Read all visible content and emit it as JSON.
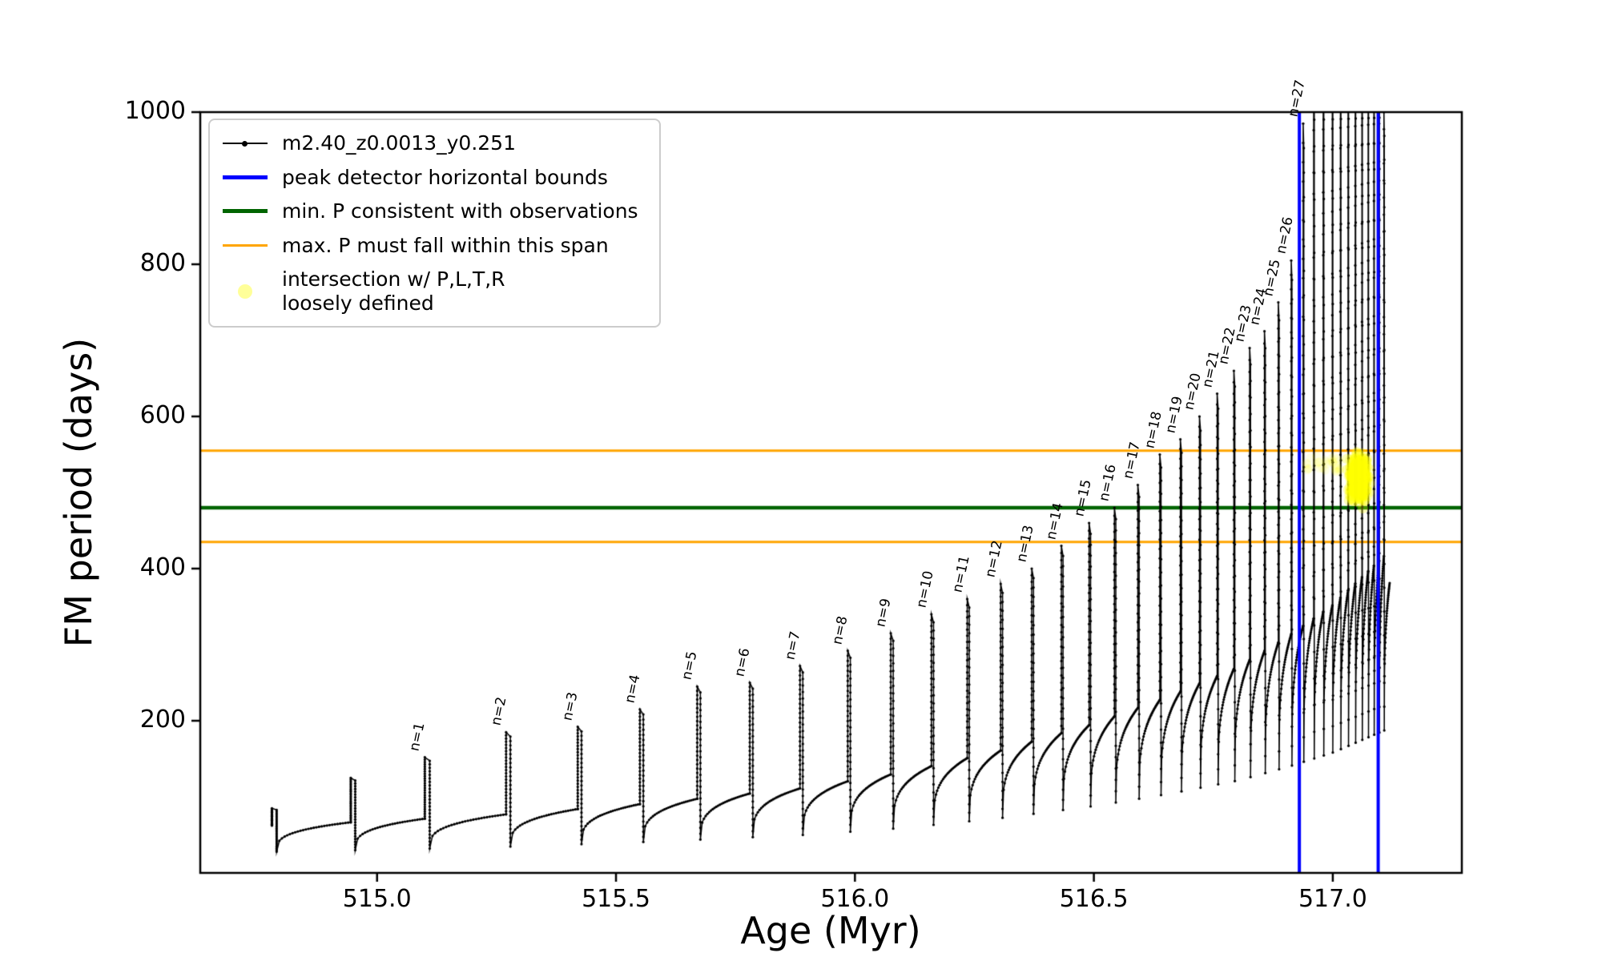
{
  "figure": {
    "background": "#ffffff"
  },
  "chart_data": {
    "type": "line",
    "title": "",
    "xlabel": "Age (Myr)",
    "ylabel": "FM period (days)",
    "xlim": [
      514.63,
      517.27
    ],
    "ylim": [
      0,
      1000
    ],
    "xticks": [
      515.0,
      515.5,
      516.0,
      516.5,
      517.0
    ],
    "xtick_labels": [
      "515.0",
      "515.5",
      "516.0",
      "516.5",
      "517.0"
    ],
    "yticks": [
      200,
      400,
      600,
      800,
      1000
    ],
    "grid": false,
    "series_name": "m2.40_z0.0013_y0.251",
    "series_color": "#000000",
    "dip_ratio": 0.45,
    "baseline_anchors": [
      [
        514.7,
        60
      ],
      [
        515.0,
        68
      ],
      [
        515.3,
        78
      ],
      [
        515.6,
        93
      ],
      [
        515.9,
        112
      ],
      [
        516.1,
        132
      ],
      [
        516.3,
        160
      ],
      [
        516.5,
        196
      ],
      [
        516.65,
        230
      ],
      [
        516.8,
        270
      ],
      [
        516.9,
        308
      ],
      [
        517.0,
        352
      ],
      [
        517.06,
        388
      ],
      [
        517.13,
        430
      ]
    ],
    "pulses": [
      {
        "age": 514.78,
        "peak": 85,
        "label": ""
      },
      {
        "age": 514.945,
        "peak": 125,
        "label": ""
      },
      {
        "age": 515.1,
        "peak": 152,
        "label": "n=1"
      },
      {
        "age": 515.27,
        "peak": 185,
        "label": "n=2"
      },
      {
        "age": 515.42,
        "peak": 192,
        "label": "n=3"
      },
      {
        "age": 515.55,
        "peak": 215,
        "label": "n=4"
      },
      {
        "age": 515.67,
        "peak": 245,
        "label": "n=5"
      },
      {
        "age": 515.78,
        "peak": 250,
        "label": "n=6"
      },
      {
        "age": 515.885,
        "peak": 272,
        "label": "n=7"
      },
      {
        "age": 515.985,
        "peak": 292,
        "label": "n=8"
      },
      {
        "age": 516.075,
        "peak": 315,
        "label": "n=9"
      },
      {
        "age": 516.16,
        "peak": 340,
        "label": "n=10"
      },
      {
        "age": 516.235,
        "peak": 360,
        "label": "n=11"
      },
      {
        "age": 516.305,
        "peak": 380,
        "label": "n=12"
      },
      {
        "age": 516.37,
        "peak": 400,
        "label": "n=13"
      },
      {
        "age": 516.432,
        "peak": 430,
        "label": "n=14"
      },
      {
        "age": 516.49,
        "peak": 460,
        "label": "n=15"
      },
      {
        "age": 516.543,
        "peak": 480,
        "label": "n=16"
      },
      {
        "age": 516.592,
        "peak": 510,
        "label": "n=17"
      },
      {
        "age": 516.638,
        "peak": 550,
        "label": "n=18"
      },
      {
        "age": 516.681,
        "peak": 570,
        "label": "n=19"
      },
      {
        "age": 516.721,
        "peak": 600,
        "label": "n=20"
      },
      {
        "age": 516.758,
        "peak": 630,
        "label": "n=21"
      },
      {
        "age": 516.793,
        "peak": 660,
        "label": "n=22"
      },
      {
        "age": 516.826,
        "peak": 690,
        "label": "n=23"
      },
      {
        "age": 516.857,
        "peak": 712,
        "label": "n=24"
      },
      {
        "age": 516.886,
        "peak": 750,
        "label": "n=25"
      },
      {
        "age": 516.913,
        "peak": 805,
        "label": "n=26"
      },
      {
        "age": 516.938,
        "peak": 985,
        "label": "n=27"
      },
      {
        "age": 516.96,
        "peak": 1060,
        "label": ""
      },
      {
        "age": 516.98,
        "peak": 1060,
        "label": ""
      },
      {
        "age": 516.999,
        "peak": 1060,
        "label": ""
      },
      {
        "age": 517.016,
        "peak": 1060,
        "label": ""
      },
      {
        "age": 517.032,
        "peak": 1060,
        "label": ""
      },
      {
        "age": 517.047,
        "peak": 1060,
        "label": ""
      },
      {
        "age": 517.061,
        "peak": 1060,
        "label": ""
      },
      {
        "age": 517.074,
        "peak": 1060,
        "label": ""
      },
      {
        "age": 517.086,
        "peak": 1060,
        "label": ""
      },
      {
        "age": 517.097,
        "peak": 1060,
        "label": ""
      },
      {
        "age": 517.107,
        "peak": 1000,
        "label": ""
      }
    ],
    "hlines": [
      {
        "y": 555,
        "color": "#ffa500",
        "lw": 3,
        "name": "max-P-span-upper"
      },
      {
        "y": 480,
        "color": "#006400",
        "lw": 4.5,
        "name": "min-P-consistent"
      },
      {
        "y": 435,
        "color": "#ffa500",
        "lw": 3,
        "name": "max-P-span-lower"
      }
    ],
    "vlines": [
      {
        "x": 516.93,
        "color": "#0000ff",
        "lw": 4,
        "name": "peak-detector-left-bound"
      },
      {
        "x": 517.095,
        "color": "#0000ff",
        "lw": 4,
        "name": "peak-detector-right-bound"
      }
    ],
    "scatter": {
      "color": "#ffff00",
      "blob": {
        "cx": 517.055,
        "cy": 519,
        "rx": 0.03,
        "ry": 42,
        "count": 300
      },
      "trail": {
        "x0": 516.945,
        "x1": 517.02,
        "y": 537,
        "yspread": 11,
        "count": 30
      }
    },
    "legend": {
      "entries": [
        {
          "type": "line-marker",
          "color": "#000000",
          "lw": 2,
          "label": "m2.40_z0.0013_y0.251"
        },
        {
          "type": "line",
          "color": "#0000ff",
          "lw": 5,
          "label": "peak detector horizontal bounds"
        },
        {
          "type": "line",
          "color": "#006400",
          "lw": 5,
          "label": "min. P consistent with observations"
        },
        {
          "type": "line",
          "color": "#ffa500",
          "lw": 3.5,
          "label": "max. P must fall within this span"
        },
        {
          "type": "marker",
          "color": "#ffff00",
          "lw": 0,
          "label": "intersection w/ P,L,T,R\nloosely defined"
        }
      ]
    }
  }
}
